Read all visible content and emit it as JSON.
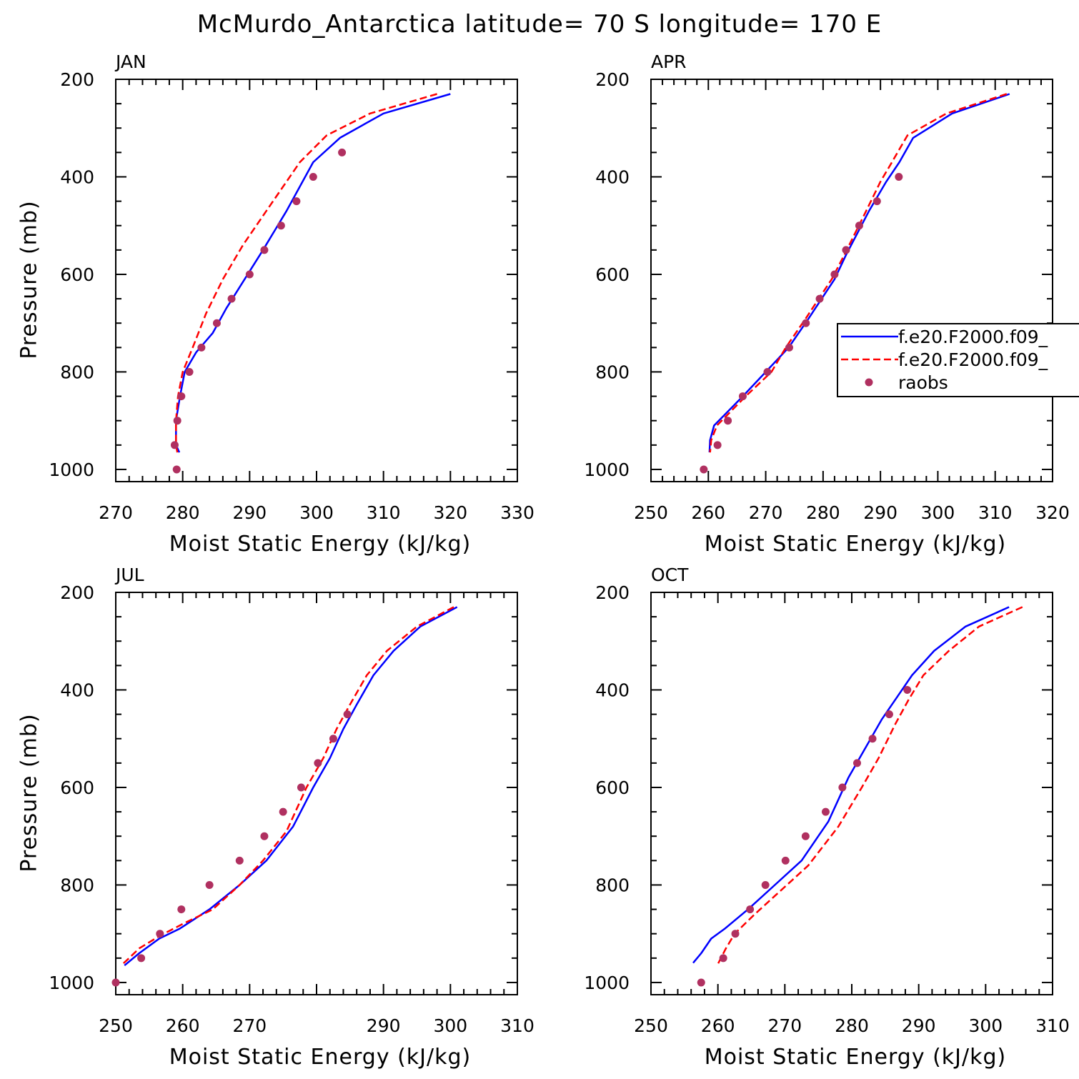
{
  "title": "McMurdo_Antarctica  latitude= 70 S longitude= 170 E",
  "colors": {
    "model1": "#0000ff",
    "model2": "#ff0000",
    "obs": "#b03060"
  },
  "legend": {
    "panel": 1,
    "entries": [
      {
        "label": "f.e20.F2000.f09_",
        "style": "solid",
        "color": "#0000ff"
      },
      {
        "label": "f.e20.F2000.f09_",
        "style": "dashed",
        "color": "#ff0000"
      },
      {
        "label": "raobs",
        "style": "marker",
        "color": "#b03060"
      }
    ]
  },
  "chart_data": [
    {
      "type": "line",
      "title": "JAN",
      "xlabel": "Moist Static Energy (kJ/kg)",
      "ylabel": "Pressure (mb)",
      "xlim": [
        270,
        330
      ],
      "ylim": [
        200,
        1025
      ],
      "y_inverted": true,
      "xticks": [
        270,
        280,
        290,
        300,
        310,
        320,
        330
      ],
      "yticks": [
        200,
        400,
        600,
        800,
        1000
      ],
      "series": [
        {
          "style": "solid",
          "color": "#0000ff",
          "x": [
            320.0,
            310.0,
            303.5,
            299.5,
            297.5,
            295.5,
            292.0,
            286.5,
            284.5,
            282.0,
            280.3,
            279.6,
            279.0,
            279.0,
            279.5
          ],
          "y": [
            230,
            270,
            320,
            370,
            420,
            470,
            550,
            670,
            720,
            760,
            800,
            850,
            900,
            950,
            965
          ]
        },
        {
          "style": "dashed",
          "color": "#ff0000",
          "x": [
            318.0,
            308.0,
            301.5,
            297.5,
            295.0,
            293.0,
            289.0,
            286.0,
            283.5,
            281.5,
            280.0,
            279.3,
            279.0,
            279.0,
            279.2
          ],
          "y": [
            230,
            270,
            315,
            370,
            420,
            460,
            540,
            610,
            680,
            750,
            800,
            850,
            900,
            950,
            965
          ]
        }
      ],
      "obs": {
        "color": "#b03060",
        "x": [
          303.8,
          299.5,
          297.0,
          294.7,
          292.2,
          290.0,
          287.3,
          285.1,
          282.8,
          281.0,
          279.8,
          279.2,
          278.8,
          279.1
        ],
        "y": [
          350,
          400,
          450,
          500,
          550,
          600,
          650,
          700,
          750,
          800,
          850,
          900,
          950,
          1000
        ]
      }
    },
    {
      "type": "line",
      "title": "APR",
      "xlabel": "Moist Static Energy (kJ/kg)",
      "ylabel": "",
      "xlim": [
        250,
        320
      ],
      "ylim": [
        200,
        1025
      ],
      "y_inverted": true,
      "xticks": [
        250,
        260,
        270,
        280,
        290,
        300,
        310,
        320
      ],
      "yticks": [
        200,
        400,
        600,
        800,
        1000
      ],
      "series": [
        {
          "style": "solid",
          "color": "#0000ff",
          "x": [
            312.5,
            302.5,
            295.7,
            293.3,
            291.0,
            288.0,
            284.0,
            282.0,
            280.3,
            277.5,
            274.0,
            270.0,
            266.0,
            261.0,
            260.3,
            260.2
          ],
          "y": [
            230,
            270,
            320,
            370,
            410,
            470,
            560,
            610,
            640,
            690,
            750,
            800,
            850,
            910,
            940,
            965
          ]
        },
        {
          "style": "dashed",
          "color": "#ff0000",
          "x": [
            312.0,
            301.5,
            294.7,
            292.0,
            290.0,
            287.5,
            283.7,
            281.5,
            279.8,
            277.0,
            273.5,
            271.0,
            266.5,
            261.5,
            260.5,
            260.3
          ],
          "y": [
            230,
            270,
            315,
            370,
            410,
            470,
            560,
            610,
            640,
            690,
            750,
            800,
            850,
            910,
            940,
            965
          ]
        }
      ],
      "obs": {
        "color": "#b03060",
        "x": [
          293.2,
          289.4,
          286.3,
          284.0,
          282.0,
          279.4,
          277.0,
          274.1,
          270.3,
          266.0,
          263.4,
          261.6,
          259.2
        ],
        "y": [
          400,
          450,
          500,
          550,
          600,
          650,
          700,
          750,
          800,
          850,
          900,
          950,
          1000
        ]
      }
    },
    {
      "type": "line",
      "title": "JUL",
      "xlabel": "Moist Static Energy (kJ/kg)",
      "ylabel": "Pressure (mb)",
      "xlim": [
        250,
        310
      ],
      "ylim": [
        200,
        1025
      ],
      "y_inverted": true,
      "xticks": [
        250,
        260,
        270,
        290,
        300,
        310
      ],
      "xtick_positions": [
        250,
        260,
        270,
        280,
        290,
        300,
        310
      ],
      "yticks": [
        200,
        400,
        600,
        800,
        1000
      ],
      "series": [
        {
          "style": "solid",
          "color": "#0000ff",
          "x": [
            301.0,
            295.5,
            291.5,
            288.5,
            286.0,
            284.0,
            282.0,
            279.5,
            276.5,
            272.5,
            268.5,
            264.0,
            259.5,
            256.5,
            253.5,
            251.3
          ],
          "y": [
            230,
            270,
            320,
            370,
            430,
            480,
            540,
            600,
            680,
            750,
            800,
            850,
            890,
            910,
            940,
            965
          ]
        },
        {
          "style": "dashed",
          "color": "#ff0000",
          "x": [
            300.5,
            295.0,
            290.5,
            287.5,
            285.0,
            283.0,
            281.0,
            278.5,
            275.5,
            272.0,
            268.5,
            264.5,
            260.0,
            256.5,
            253.5,
            252.0,
            250.8
          ],
          "y": [
            230,
            270,
            320,
            370,
            430,
            480,
            540,
            600,
            690,
            750,
            800,
            850,
            880,
            905,
            930,
            950,
            965
          ]
        }
      ],
      "obs": {
        "color": "#b03060",
        "x": [
          284.6,
          282.5,
          280.2,
          277.7,
          275.0,
          272.2,
          268.5,
          264.0,
          259.8,
          256.6,
          253.8,
          250.0
        ],
        "y": [
          450,
          500,
          550,
          600,
          650,
          700,
          750,
          800,
          850,
          900,
          950,
          1000
        ]
      }
    },
    {
      "type": "line",
      "title": "OCT",
      "xlabel": "Moist Static Energy (kJ/kg)",
      "ylabel": "",
      "xlim": [
        250,
        310
      ],
      "ylim": [
        200,
        1025
      ],
      "y_inverted": true,
      "xticks": [
        250,
        260,
        270,
        280,
        290,
        300,
        310
      ],
      "yticks": [
        200,
        400,
        600,
        800,
        1000
      ],
      "series": [
        {
          "style": "solid",
          "color": "#0000ff",
          "x": [
            303.5,
            297.0,
            292.3,
            289.0,
            287.0,
            284.5,
            282.0,
            279.5,
            276.5,
            272.5,
            268.5,
            264.5,
            261.0,
            259.0,
            257.5,
            256.3
          ],
          "y": [
            230,
            270,
            320,
            370,
            410,
            460,
            520,
            580,
            670,
            750,
            800,
            850,
            890,
            910,
            940,
            960
          ]
        },
        {
          "style": "dashed",
          "color": "#ff0000",
          "x": [
            305.5,
            299.0,
            294.5,
            290.7,
            288.5,
            286.5,
            284.0,
            281.5,
            278.0,
            273.5,
            269.5,
            265.5,
            262.5,
            261.2,
            260.0
          ],
          "y": [
            230,
            270,
            320,
            370,
            420,
            470,
            540,
            600,
            680,
            760,
            810,
            860,
            900,
            930,
            962
          ]
        }
      ],
      "obs": {
        "color": "#b03060",
        "x": [
          288.3,
          285.6,
          283.1,
          280.8,
          278.6,
          276.1,
          273.1,
          270.1,
          267.1,
          264.8,
          262.6,
          260.8,
          257.5
        ],
        "y": [
          400,
          450,
          500,
          550,
          600,
          650,
          700,
          750,
          800,
          850,
          900,
          950,
          1000
        ]
      }
    }
  ]
}
